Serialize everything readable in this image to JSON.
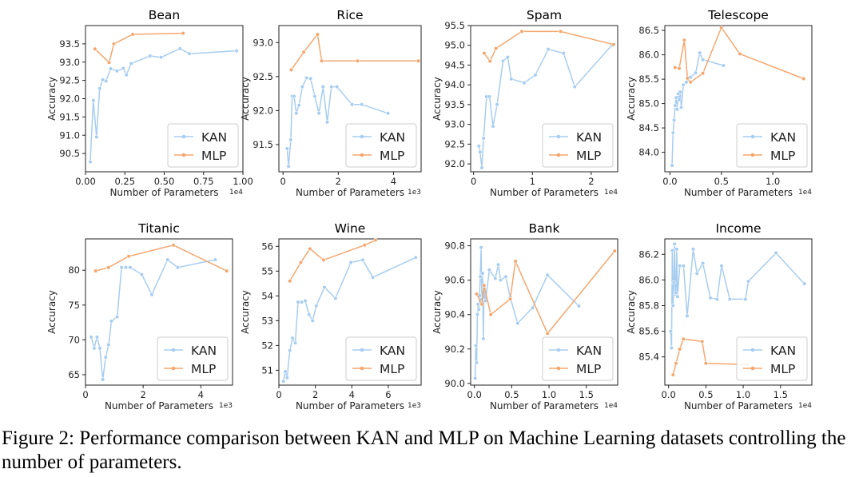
{
  "caption": "Figure 2: Performance comparison between KAN and MLP on Machine Learning datasets controlling the number of parameters.",
  "colors": {
    "kan": "#a7cdf0",
    "mlp": "#f5a66d",
    "axis": "#222222",
    "legend_edge": "#cccccc"
  },
  "chart_data": [
    {
      "type": "line",
      "title": "Bean",
      "xlabel": "Number of Parameters",
      "ylabel": "Accuracy",
      "x_multiplier": "1e4",
      "xlim": [
        0,
        1.0
      ],
      "ylim": [
        90.0,
        94.0
      ],
      "xticks": [
        0.0,
        0.25,
        0.5,
        0.75,
        1.0
      ],
      "xtick_labels": [
        "0.00",
        "0.25",
        "0.50",
        "0.75",
        "1.00"
      ],
      "yticks": [
        90.5,
        91.0,
        91.5,
        92.0,
        92.5,
        93.0,
        93.5
      ],
      "ytick_labels": [
        "90.5",
        "91.0",
        "91.5",
        "92.0",
        "92.5",
        "93.0",
        "93.5"
      ],
      "legend_loc": "lower-right",
      "series": [
        {
          "name": "KAN",
          "x": [
            0.03,
            0.05,
            0.07,
            0.09,
            0.11,
            0.13,
            0.16,
            0.2,
            0.24,
            0.26,
            0.29,
            0.41,
            0.48,
            0.6,
            0.66,
            0.96
          ],
          "y": [
            90.27,
            91.95,
            90.95,
            92.28,
            92.52,
            92.48,
            92.82,
            92.76,
            92.83,
            92.65,
            92.96,
            93.17,
            93.13,
            93.37,
            93.23,
            93.31
          ]
        },
        {
          "name": "MLP",
          "x": [
            0.06,
            0.15,
            0.18,
            0.3,
            0.62
          ],
          "y": [
            93.36,
            92.99,
            93.5,
            93.76,
            93.79
          ]
        }
      ]
    },
    {
      "type": "line",
      "title": "Rice",
      "xlabel": "Number of Parameters",
      "ylabel": "Accuracy",
      "x_multiplier": "1e3",
      "xlim": [
        -0.15,
        5.0
      ],
      "ylim": [
        91.1,
        93.25
      ],
      "xticks": [
        0,
        2,
        4
      ],
      "xtick_labels": [
        "0",
        "2",
        "4"
      ],
      "yticks": [
        91.5,
        92.0,
        92.5,
        93.0
      ],
      "ytick_labels": [
        "91.5",
        "92.0",
        "92.5",
        "93.0"
      ],
      "legend_loc": "lower-right",
      "series": [
        {
          "name": "KAN",
          "x": [
            0.15,
            0.2,
            0.28,
            0.33,
            0.4,
            0.48,
            0.58,
            0.7,
            0.85,
            1.0,
            1.15,
            1.3,
            1.45,
            1.6,
            1.75,
            1.95,
            2.5,
            2.85,
            3.8
          ],
          "y": [
            91.44,
            91.18,
            91.57,
            92.21,
            92.21,
            91.96,
            92.08,
            92.35,
            92.48,
            92.47,
            92.21,
            91.96,
            92.35,
            91.83,
            92.35,
            92.35,
            92.09,
            92.09,
            91.96
          ]
        },
        {
          "name": "MLP",
          "x": [
            0.3,
            0.75,
            1.25,
            1.4,
            2.7,
            4.9
          ],
          "y": [
            92.6,
            92.86,
            93.12,
            92.73,
            92.73,
            92.73
          ]
        }
      ]
    },
    {
      "type": "line",
      "title": "Spam",
      "xlabel": "Number of Parameters",
      "ylabel": "Accuracy",
      "x_multiplier": "1e4",
      "xlim": [
        -0.05,
        2.45
      ],
      "ylim": [
        91.8,
        95.5
      ],
      "xticks": [
        0,
        1,
        2
      ],
      "xtick_labels": [
        "0",
        "1",
        "2"
      ],
      "yticks": [
        92.0,
        92.5,
        93.0,
        93.5,
        94.0,
        94.5,
        95.0,
        95.5
      ],
      "ytick_labels": [
        "92.0",
        "92.5",
        "93.0",
        "93.5",
        "94.0",
        "94.5",
        "95.0",
        "95.5"
      ],
      "legend_loc": "lower-right",
      "series": [
        {
          "name": "KAN",
          "x": [
            0.09,
            0.11,
            0.14,
            0.17,
            0.22,
            0.27,
            0.33,
            0.4,
            0.5,
            0.58,
            0.64,
            0.86,
            1.05,
            1.27,
            1.53,
            1.72,
            2.35
          ],
          "y": [
            92.45,
            92.3,
            91.9,
            92.65,
            93.7,
            93.7,
            92.95,
            93.5,
            94.6,
            94.7,
            94.15,
            94.05,
            94.25,
            94.9,
            94.8,
            93.95,
            95.0
          ]
        },
        {
          "name": "MLP",
          "x": [
            0.18,
            0.28,
            0.38,
            0.82,
            1.48,
            2.38
          ],
          "y": [
            94.8,
            94.6,
            94.92,
            95.35,
            95.35,
            95.02
          ]
        }
      ]
    },
    {
      "type": "line",
      "title": "Telescope",
      "xlabel": "Number of Parameters",
      "ylabel": "Accuracy",
      "x_multiplier": "1e4",
      "xlim": [
        -0.05,
        1.38
      ],
      "ylim": [
        83.6,
        86.6
      ],
      "xticks": [
        0.0,
        0.5,
        1.0
      ],
      "xtick_labels": [
        "0.0",
        "0.5",
        "1.0"
      ],
      "yticks": [
        84.0,
        84.5,
        85.0,
        85.5,
        86.0,
        86.5
      ],
      "ytick_labels": [
        "84.0",
        "84.5",
        "85.0",
        "85.5",
        "86.0",
        "86.5"
      ],
      "legend_loc": "lower-right",
      "series": [
        {
          "name": "KAN",
          "x": [
            0.02,
            0.03,
            0.04,
            0.05,
            0.06,
            0.07,
            0.08,
            0.09,
            0.1,
            0.11,
            0.13,
            0.16,
            0.2,
            0.25,
            0.29,
            0.32,
            0.52
          ],
          "y": [
            83.73,
            84.4,
            84.66,
            84.96,
            85.12,
            84.88,
            85.2,
            85.08,
            85.24,
            84.92,
            85.38,
            85.44,
            85.54,
            85.63,
            86.04,
            85.9,
            85.78
          ]
        },
        {
          "name": "MLP",
          "x": [
            0.05,
            0.09,
            0.14,
            0.17,
            0.2,
            0.32,
            0.5,
            0.68,
            1.3
          ],
          "y": [
            85.74,
            85.72,
            86.3,
            85.52,
            85.44,
            85.62,
            86.56,
            86.02,
            85.51
          ]
        }
      ]
    },
    {
      "type": "line",
      "title": "Titanic",
      "xlabel": "Number of Parameters",
      "ylabel": "Accuracy",
      "x_multiplier": "1e3",
      "xlim": [
        0,
        5.1
      ],
      "ylim": [
        63.5,
        84.5
      ],
      "xticks": [
        0,
        2,
        4
      ],
      "xtick_labels": [
        "0",
        "2",
        "4"
      ],
      "yticks": [
        65,
        70,
        75,
        80
      ],
      "ytick_labels": [
        "65",
        "70",
        "75",
        "80"
      ],
      "legend_loc": "lower-right",
      "series": [
        {
          "name": "KAN",
          "x": [
            0.2,
            0.3,
            0.4,
            0.5,
            0.6,
            0.7,
            0.8,
            0.9,
            1.1,
            1.25,
            1.4,
            1.55,
            1.95,
            2.3,
            2.85,
            3.2,
            4.5
          ],
          "y": [
            70.4,
            68.8,
            70.4,
            68.8,
            64.3,
            67.5,
            69.3,
            72.7,
            73.3,
            80.4,
            80.4,
            80.4,
            79.4,
            76.5,
            81.5,
            80.4,
            81.5
          ]
        },
        {
          "name": "MLP",
          "x": [
            0.35,
            0.8,
            1.5,
            3.05,
            4.9
          ],
          "y": [
            79.9,
            80.4,
            82.0,
            83.6,
            79.9
          ]
        }
      ]
    },
    {
      "type": "line",
      "title": "Wine",
      "xlabel": "Number of Parameters",
      "ylabel": "Accuracy",
      "x_multiplier": "1e3",
      "xlim": [
        0,
        7.8
      ],
      "ylim": [
        50.4,
        56.3
      ],
      "xticks": [
        0,
        2,
        4,
        6
      ],
      "xtick_labels": [
        "0",
        "2",
        "4",
        "6"
      ],
      "yticks": [
        51,
        52,
        53,
        54,
        55,
        56
      ],
      "ytick_labels": [
        "51",
        "52",
        "53",
        "54",
        "55",
        "56"
      ],
      "legend_loc": "lower-right",
      "series": [
        {
          "name": "KAN",
          "x": [
            0.25,
            0.35,
            0.45,
            0.6,
            0.75,
            0.9,
            1.05,
            1.25,
            1.45,
            1.65,
            1.85,
            2.05,
            2.5,
            3.1,
            3.95,
            4.6,
            5.15,
            7.5
          ],
          "y": [
            50.55,
            50.95,
            50.7,
            51.8,
            52.3,
            52.1,
            53.75,
            53.75,
            53.8,
            53.25,
            53.0,
            53.6,
            54.35,
            53.9,
            55.35,
            55.45,
            54.75,
            55.55
          ]
        },
        {
          "name": "MLP",
          "x": [
            0.6,
            1.2,
            1.7,
            2.45,
            4.7,
            5.3
          ],
          "y": [
            54.6,
            55.35,
            55.9,
            55.45,
            56.05,
            56.25
          ]
        }
      ]
    },
    {
      "type": "line",
      "title": "Bank",
      "xlabel": "Number of Parameters",
      "ylabel": "Accuracy",
      "x_multiplier": "1e4",
      "xlim": [
        -0.05,
        1.92
      ],
      "ylim": [
        89.99,
        90.84
      ],
      "xticks": [
        0.0,
        0.5,
        1.0,
        1.5
      ],
      "xtick_labels": [
        "0.0",
        "0.5",
        "1.0",
        "1.5"
      ],
      "yticks": [
        90.0,
        90.2,
        90.4,
        90.6,
        90.8
      ],
      "ytick_labels": [
        "90.0",
        "90.2",
        "90.4",
        "90.6",
        "90.8"
      ],
      "legend_loc": "lower-right",
      "series": [
        {
          "name": "KAN",
          "x": [
            0.01,
            0.02,
            0.03,
            0.04,
            0.05,
            0.06,
            0.07,
            0.08,
            0.09,
            0.1,
            0.11,
            0.12,
            0.13,
            0.15,
            0.2,
            0.28,
            0.32,
            0.35,
            0.42,
            0.48,
            0.58,
            0.78,
            0.98,
            1.4
          ],
          "y": [
            90.03,
            90.22,
            90.12,
            90.4,
            90.46,
            90.43,
            90.51,
            90.62,
            90.79,
            90.49,
            90.64,
            90.26,
            90.55,
            90.48,
            90.66,
            90.61,
            90.69,
            90.6,
            90.62,
            90.5,
            90.35,
            90.44,
            90.63,
            90.45
          ]
        },
        {
          "name": "MLP",
          "x": [
            0.03,
            0.1,
            0.13,
            0.22,
            0.48,
            0.55,
            0.98,
            1.88
          ],
          "y": [
            90.52,
            90.46,
            90.57,
            90.4,
            90.49,
            90.71,
            90.29,
            90.77
          ]
        }
      ]
    },
    {
      "type": "line",
      "title": "Income",
      "xlabel": "Number of Parameters",
      "ylabel": "Accuracy",
      "x_multiplier": "1e4",
      "xlim": [
        -0.05,
        1.92
      ],
      "ylim": [
        85.18,
        86.32
      ],
      "xticks": [
        0.0,
        0.5,
        1.0,
        1.5
      ],
      "xtick_labels": [
        "0.0",
        "0.5",
        "1.0",
        "1.5"
      ],
      "yticks": [
        85.4,
        85.6,
        85.8,
        86.0,
        86.2
      ],
      "ytick_labels": [
        "85.4",
        "85.6",
        "85.8",
        "86.0",
        "86.2"
      ],
      "legend_loc": "lower-right",
      "series": [
        {
          "name": "KAN",
          "x": [
            0.03,
            0.04,
            0.05,
            0.06,
            0.07,
            0.08,
            0.09,
            0.1,
            0.11,
            0.12,
            0.15,
            0.2,
            0.25,
            0.33,
            0.38,
            0.46,
            0.56,
            0.65,
            0.71,
            0.82,
            1.03,
            1.07,
            1.44,
            1.82
          ],
          "y": [
            85.6,
            85.47,
            86.23,
            85.8,
            85.98,
            86.28,
            85.89,
            85.9,
            86.24,
            85.87,
            86.11,
            86.11,
            85.72,
            86.24,
            86.05,
            86.13,
            85.86,
            85.85,
            86.11,
            85.85,
            85.85,
            85.99,
            86.21,
            85.97
          ]
        },
        {
          "name": "MLP",
          "x": [
            0.06,
            0.1,
            0.15,
            0.2,
            0.45,
            0.5,
            1.05
          ],
          "y": [
            85.26,
            85.35,
            85.46,
            85.54,
            85.52,
            85.35,
            85.34
          ]
        }
      ]
    }
  ]
}
